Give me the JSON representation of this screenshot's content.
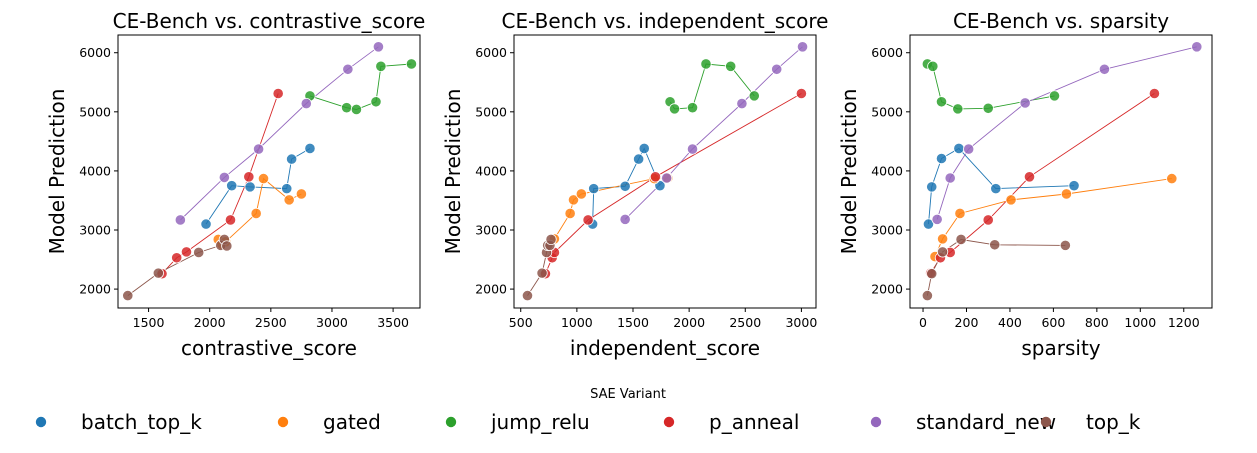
{
  "legend": {
    "title": "SAE Variant",
    "entries": [
      {
        "name": "batch_top_k",
        "color": "#1f77b4"
      },
      {
        "name": "gated",
        "color": "#ff7f0e"
      },
      {
        "name": "jump_relu",
        "color": "#2ca02c"
      },
      {
        "name": "p_anneal",
        "color": "#d62728"
      },
      {
        "name": "standard_new",
        "color": "#9467bd"
      },
      {
        "name": "top_k",
        "color": "#8c564b"
      }
    ]
  },
  "chart_data": [
    {
      "type": "scatter",
      "title": "CE-Bench vs. contrastive_score",
      "xlabel": "contrastive_score",
      "ylabel": "Model Prediction",
      "xlim": [
        1250,
        3720
      ],
      "ylim": [
        1680,
        6300
      ],
      "xticks": [
        1500,
        2000,
        2500,
        3000,
        3500
      ],
      "yticks": [
        2000,
        3000,
        4000,
        5000,
        6000
      ],
      "series": [
        {
          "name": "batch_top_k",
          "x": [
            1970,
            2180,
            2330,
            2630,
            2670,
            2820
          ],
          "y": [
            3100,
            3750,
            3730,
            3700,
            4200,
            4380
          ]
        },
        {
          "name": "gated",
          "x": [
            2070,
            2100,
            2130,
            2380,
            2440,
            2650,
            2750
          ],
          "y": [
            2840,
            2760,
            2800,
            3280,
            3870,
            3510,
            3610
          ]
        },
        {
          "name": "jump_relu",
          "x": [
            2820,
            3120,
            3200,
            3360,
            3400,
            3650
          ],
          "y": [
            5270,
            5070,
            5040,
            5170,
            5770,
            5810
          ]
        },
        {
          "name": "p_anneal",
          "x": [
            1610,
            1730,
            1810,
            2170,
            2320,
            2560
          ],
          "y": [
            2260,
            2530,
            2630,
            3170,
            3900,
            5310
          ]
        },
        {
          "name": "standard_new",
          "x": [
            1760,
            2120,
            2400,
            2790,
            3130,
            3380
          ],
          "y": [
            3170,
            3890,
            4370,
            5140,
            5720,
            6100
          ]
        },
        {
          "name": "top_k",
          "x": [
            1330,
            1580,
            1910,
            2090,
            2120,
            2140
          ],
          "y": [
            1890,
            2270,
            2620,
            2740,
            2840,
            2730
          ]
        }
      ]
    },
    {
      "type": "scatter",
      "title": "CE-Bench vs. independent_score",
      "xlabel": "independent_score",
      "ylabel": "Model Prediction",
      "xlim": [
        440,
        3130
      ],
      "ylim": [
        1680,
        6300
      ],
      "xticks": [
        500,
        1000,
        1500,
        2000,
        2500,
        3000
      ],
      "yticks": [
        2000,
        3000,
        4000,
        5000,
        6000
      ],
      "series": [
        {
          "name": "batch_top_k",
          "x": [
            1140,
            1150,
            1430,
            1550,
            1600,
            1740
          ],
          "y": [
            3100,
            3700,
            3740,
            4200,
            4380,
            3750
          ]
        },
        {
          "name": "gated",
          "x": [
            800,
            940,
            970,
            1040,
            1690,
            1810
          ],
          "y": [
            2850,
            3280,
            3510,
            3610,
            3870,
            3880
          ]
        },
        {
          "name": "jump_relu",
          "x": [
            1830,
            1870,
            2030,
            2150,
            2370,
            2580
          ],
          "y": [
            5170,
            5050,
            5070,
            5810,
            5770,
            5270
          ]
        },
        {
          "name": "p_anneal",
          "x": [
            720,
            780,
            800,
            1100,
            1700,
            3000
          ],
          "y": [
            2260,
            2530,
            2620,
            3170,
            3900,
            5310
          ]
        },
        {
          "name": "standard_new",
          "x": [
            1430,
            1800,
            2030,
            2470,
            2780,
            3010
          ],
          "y": [
            3180,
            3880,
            4370,
            5140,
            5720,
            6100
          ]
        },
        {
          "name": "top_k",
          "x": [
            560,
            690,
            730,
            740,
            760,
            770
          ],
          "y": [
            1890,
            2270,
            2620,
            2740,
            2740,
            2840
          ]
        }
      ]
    },
    {
      "type": "scatter",
      "title": "CE-Bench vs. sparsity",
      "xlabel": "sparsity",
      "ylabel": "Model Prediction",
      "xlim": [
        -60,
        1330
      ],
      "ylim": [
        1680,
        6300
      ],
      "xticks": [
        0,
        200,
        400,
        600,
        800,
        1000,
        1200
      ],
      "yticks": [
        2000,
        3000,
        4000,
        5000,
        6000
      ],
      "series": [
        {
          "name": "batch_top_k",
          "x": [
            25,
            40,
            85,
            165,
            335,
            695
          ],
          "y": [
            3100,
            3730,
            4210,
            4380,
            3700,
            3750
          ]
        },
        {
          "name": "gated",
          "x": [
            55,
            90,
            170,
            405,
            660,
            1145
          ],
          "y": [
            2550,
            2850,
            3280,
            3510,
            3610,
            3870
          ]
        },
        {
          "name": "jump_relu",
          "x": [
            20,
            45,
            85,
            160,
            300,
            605
          ],
          "y": [
            5810,
            5770,
            5170,
            5050,
            5060,
            5270
          ]
        },
        {
          "name": "p_anneal",
          "x": [
            35,
            80,
            125,
            300,
            490,
            1065
          ],
          "y": [
            2270,
            2530,
            2620,
            3170,
            3900,
            5310
          ]
        },
        {
          "name": "standard_new",
          "x": [
            65,
            125,
            210,
            470,
            835,
            1260
          ],
          "y": [
            3180,
            3880,
            4370,
            5150,
            5720,
            6100
          ]
        },
        {
          "name": "top_k",
          "x": [
            20,
            40,
            90,
            175,
            330,
            655
          ],
          "y": [
            1890,
            2260,
            2630,
            2840,
            2750,
            2740
          ]
        }
      ]
    }
  ]
}
